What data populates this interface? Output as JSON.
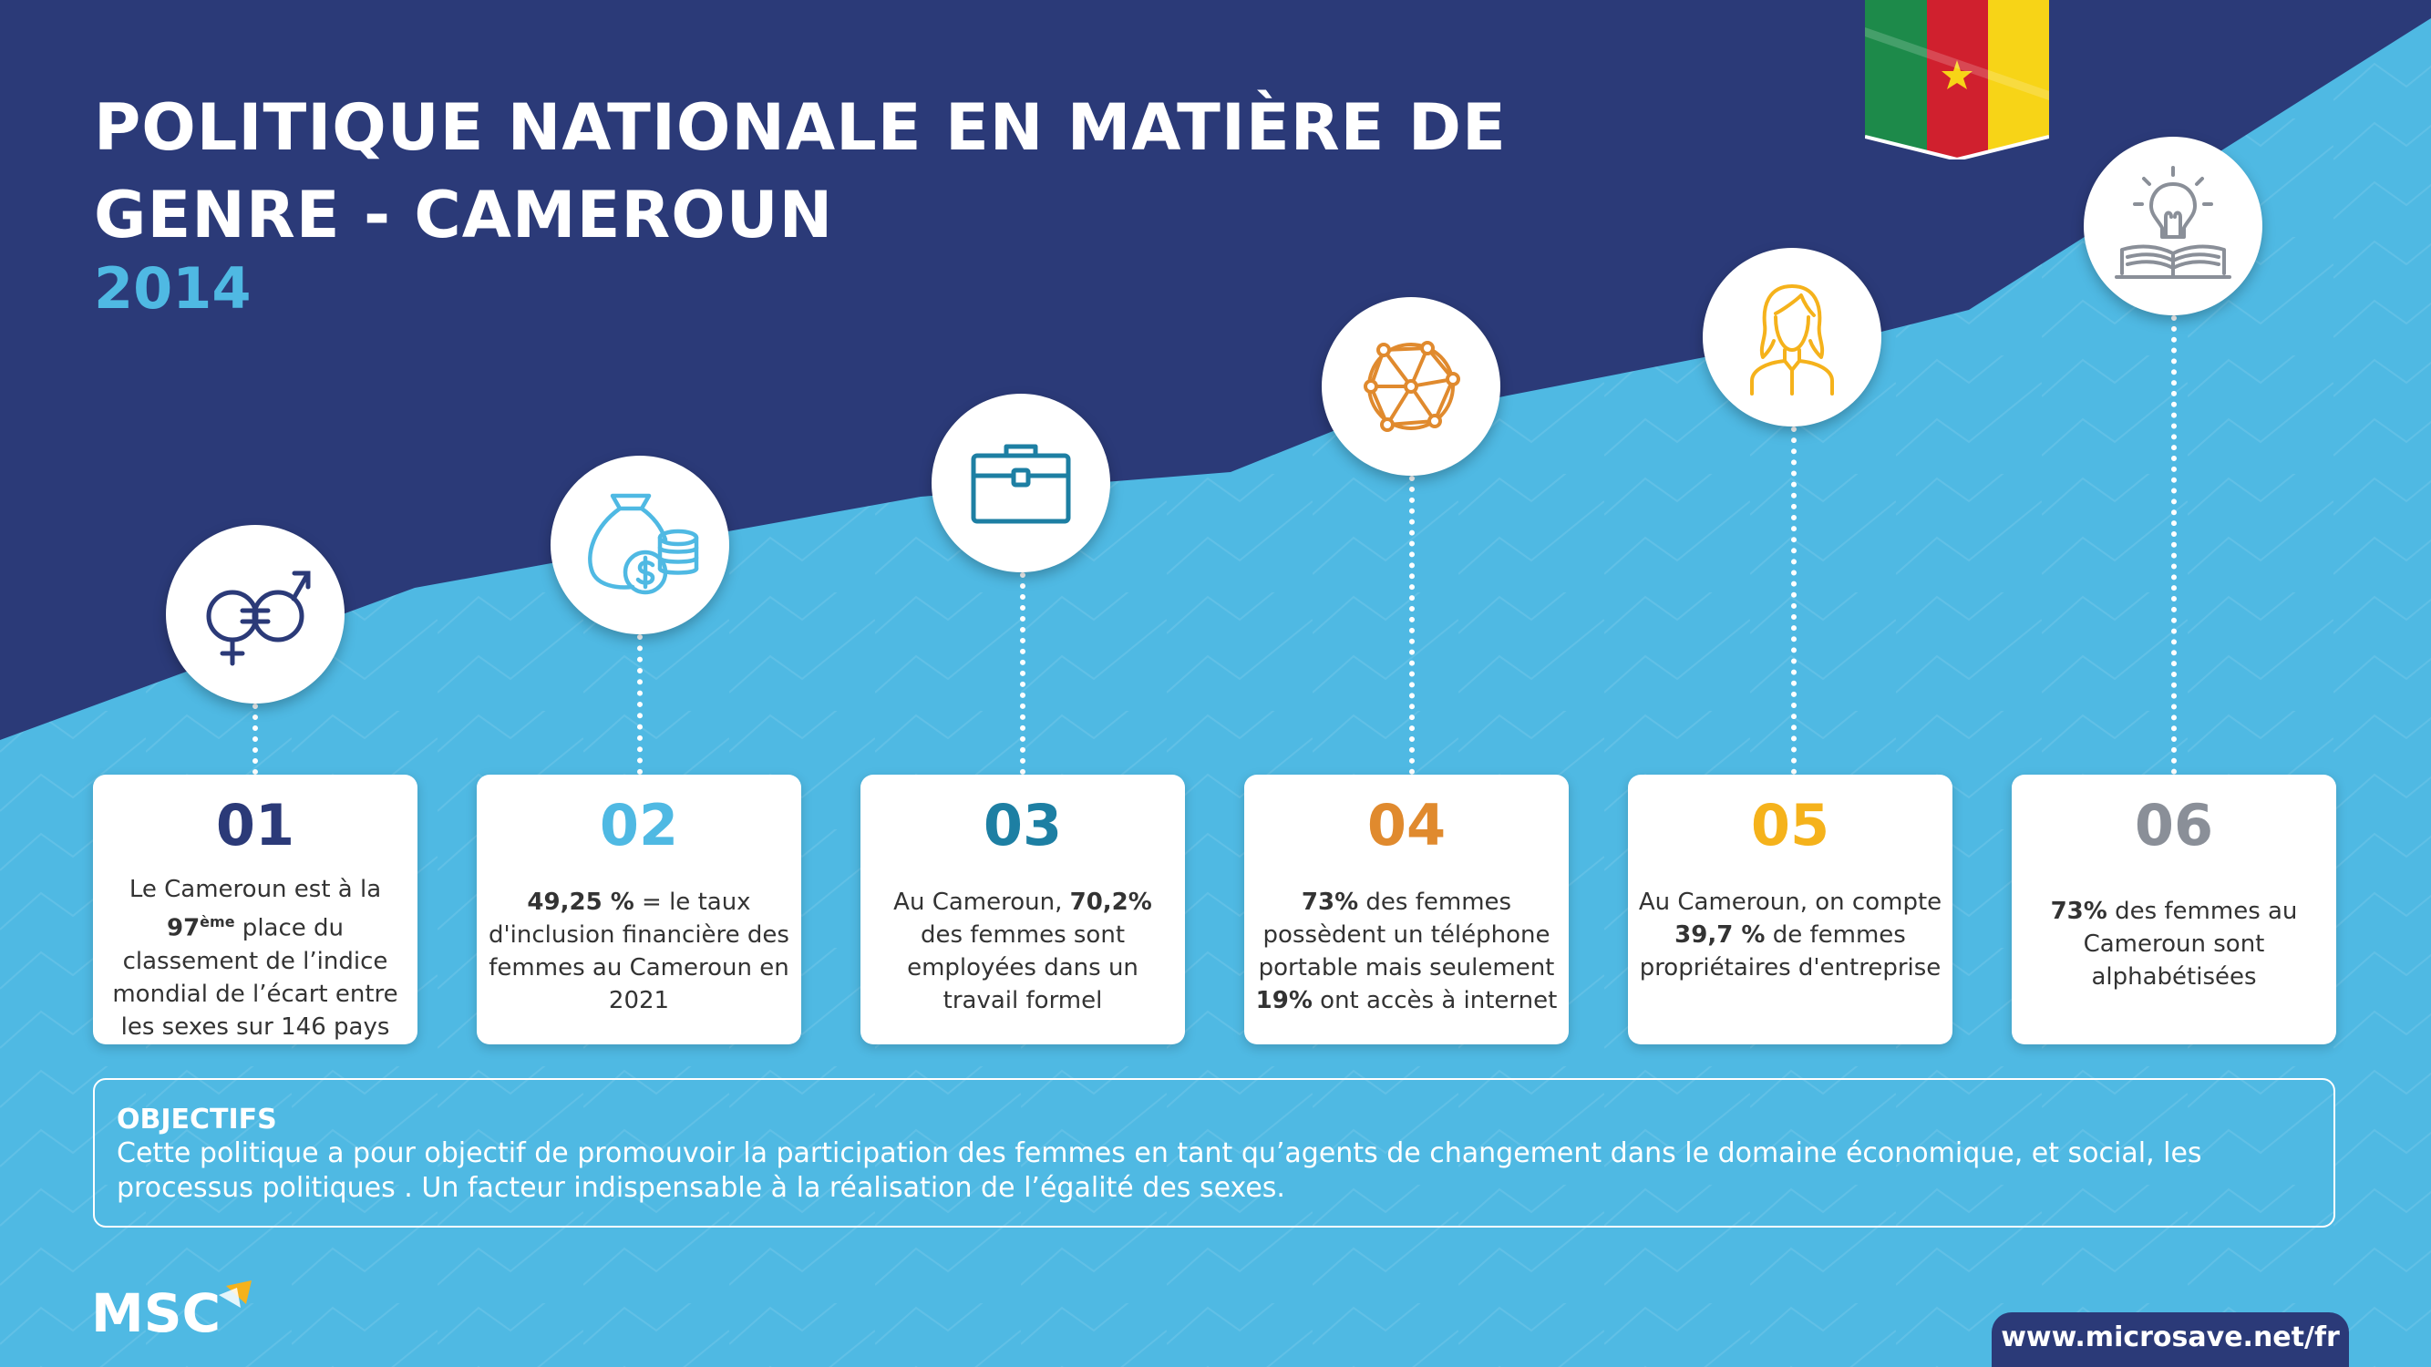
{
  "header": {
    "title_line1": "POLITIQUE NATIONALE EN MATIÈRE DE",
    "title_line2": "GENRE - CAMEROUN",
    "year": "2014"
  },
  "colors": {
    "navy": "#2b3a78",
    "sky": "#4fb9e3",
    "teal": "#1d7fa3",
    "orange": "#e08a2e",
    "yellow": "#f5b21b",
    "gray": "#8a8f98",
    "flag_green": "#1d8a4a",
    "flag_red": "#d0202e",
    "flag_yellow": "#f7d417"
  },
  "cards": [
    {
      "number": "01",
      "icon": "gender-equality-icon",
      "color": "#2b3a78",
      "parts": [
        {
          "t": "Le Cameroun est à la "
        },
        {
          "t": "97",
          "b": true
        },
        {
          "t": "ème",
          "sup": true
        },
        {
          "t": " place du classement de l’indice mondial de l’écart entre les sexes sur 146 pays"
        }
      ]
    },
    {
      "number": "02",
      "icon": "money-bag-coins-icon",
      "color": "#4fb9e3",
      "parts": [
        {
          "t": "49,25 %",
          "b": true
        },
        {
          "t": " = le taux d'inclusion financière des femmes au Cameroun en 2021"
        }
      ]
    },
    {
      "number": "03",
      "icon": "briefcase-icon",
      "color": "#1d7fa3",
      "parts": [
        {
          "t": "Au Cameroun, "
        },
        {
          "t": "70,2%",
          "b": true
        },
        {
          "t": " des femmes sont employées dans un travail formel"
        }
      ]
    },
    {
      "number": "04",
      "icon": "network-globe-icon",
      "color": "#e08a2e",
      "parts": [
        {
          "t": "73%",
          "b": true
        },
        {
          "t": " des femmes possèdent un téléphone portable mais seulement "
        },
        {
          "t": "19%",
          "b": true
        },
        {
          "t": " ont accès à internet"
        }
      ]
    },
    {
      "number": "05",
      "icon": "businesswoman-icon",
      "color": "#f5b21b",
      "parts": [
        {
          "t": "Au Cameroun, on compte "
        },
        {
          "t": "39,7 %",
          "b": true
        },
        {
          "t": " de femmes propriétaires d'entreprise"
        }
      ]
    },
    {
      "number": "06",
      "icon": "lightbulb-book-icon",
      "color": "#8a8f98",
      "parts": [
        {
          "t": "73%",
          "b": true
        },
        {
          "t": " des femmes au Cameroun sont alphabétisées"
        }
      ]
    }
  ],
  "objectives": {
    "title": "OBJECTIFS",
    "text": "Cette politique a pour objectif de promouvoir la participation des femmes en tant qu’agents de changement dans le domaine économique, et social, les processus politiques . Un facteur indispensable à la réalisation de l’égalité des sexes."
  },
  "footer": {
    "logo_text": "MSC",
    "website": "www.microsave.net/fr"
  }
}
